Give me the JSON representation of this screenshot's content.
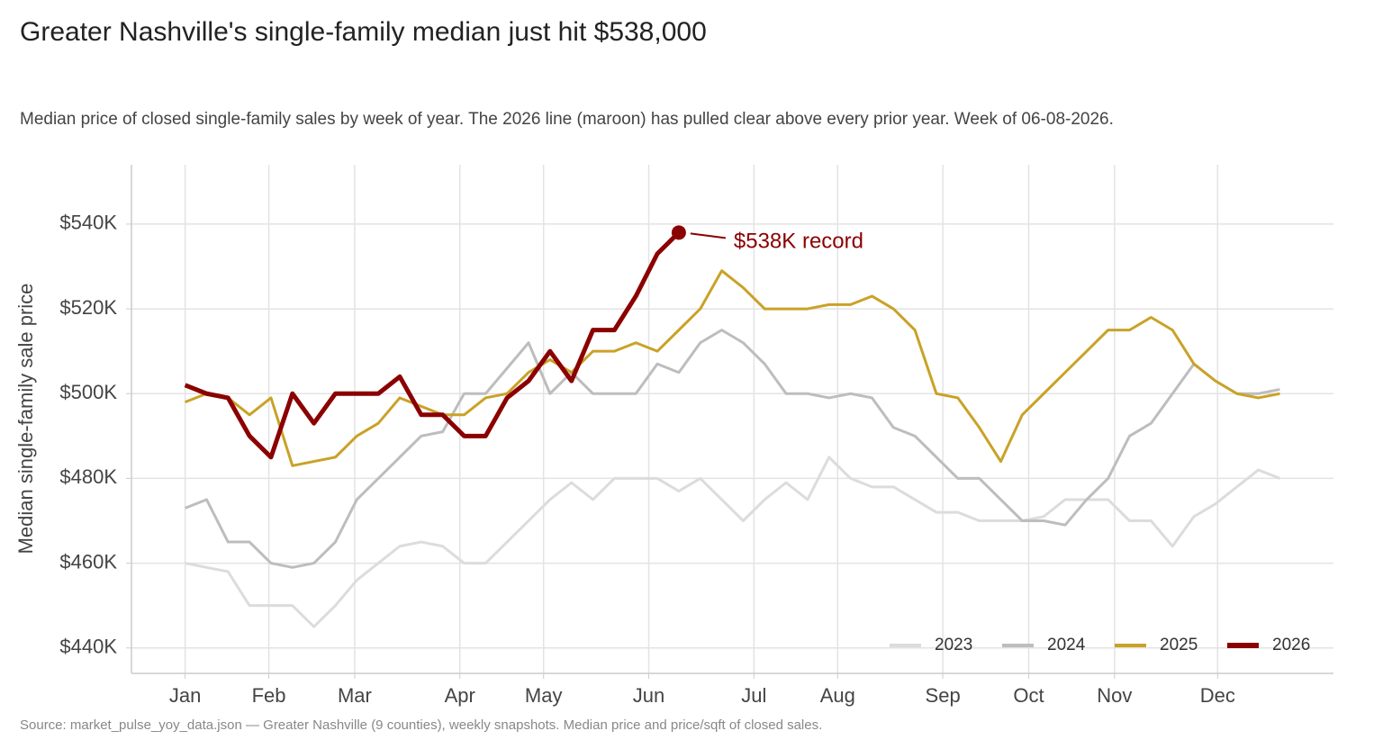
{
  "chart_data": {
    "type": "line",
    "title": "Greater Nashville's single-family median just hit $538,000",
    "subtitle": "Median price of closed single-family sales by week of year. The 2026 line (maroon) has pulled clear above every prior year. Week of 06-08-2026.",
    "y_label": "Median single-family sale price",
    "source": "Source: market_pulse_yoy_data.json — Greater Nashville (9 counties), weekly snapshots. Median price and price/sqft of closed sales.",
    "annotation": "$538K record",
    "grid": true,
    "legend": "bottom-right",
    "x": [
      1,
      2,
      3,
      4,
      5,
      6,
      7,
      8,
      9,
      10,
      11,
      12,
      13,
      14,
      15,
      16,
      17,
      18,
      19,
      20,
      21,
      22,
      23,
      24,
      25,
      26,
      27,
      28,
      29,
      30,
      31,
      32,
      33,
      34,
      35,
      36,
      37,
      38,
      39,
      40,
      41,
      42,
      43,
      44,
      45,
      46,
      47,
      48,
      49,
      50,
      51,
      52
    ],
    "xlim": [
      -1.5,
      54.5
    ],
    "xticks": [
      {
        "value": 1,
        "label": "Jan"
      },
      {
        "value": 4.9,
        "label": "Feb"
      },
      {
        "value": 8.9,
        "label": "Mar"
      },
      {
        "value": 13.8,
        "label": "Apr"
      },
      {
        "value": 17.7,
        "label": "May"
      },
      {
        "value": 22.6,
        "label": "Jun"
      },
      {
        "value": 27.5,
        "label": "Jul"
      },
      {
        "value": 31.4,
        "label": "Aug"
      },
      {
        "value": 36.3,
        "label": "Sep"
      },
      {
        "value": 40.3,
        "label": "Oct"
      },
      {
        "value": 44.3,
        "label": "Nov"
      },
      {
        "value": 49.1,
        "label": "Dec"
      }
    ],
    "ylim": [
      434000,
      554000
    ],
    "yticks": [
      {
        "value": 440000,
        "label": "$440K"
      },
      {
        "value": 460000,
        "label": "$460K"
      },
      {
        "value": 480000,
        "label": "$480K"
      },
      {
        "value": 500000,
        "label": "$500K"
      },
      {
        "value": 520000,
        "label": "$520K"
      },
      {
        "value": 540000,
        "label": "$540K"
      }
    ],
    "series": [
      {
        "name": "2023",
        "color": "#dcdcdc",
        "values": [
          460000,
          459000,
          458000,
          450000,
          450000,
          450000,
          445000,
          450000,
          456000,
          460000,
          464000,
          465000,
          464000,
          460000,
          460000,
          465000,
          470000,
          475000,
          479000,
          475000,
          480000,
          480000,
          480000,
          477000,
          480000,
          475000,
          470000,
          475000,
          479000,
          475000,
          485000,
          480000,
          478000,
          478000,
          475000,
          472000,
          472000,
          470000,
          470000,
          470000,
          471000,
          475000,
          475000,
          475000,
          470000,
          470000,
          464000,
          471000,
          474000,
          478000,
          482000,
          480000
        ]
      },
      {
        "name": "2024",
        "color": "#bdbdbd",
        "values": [
          473000,
          475000,
          465000,
          465000,
          460000,
          459000,
          460000,
          465000,
          475000,
          480000,
          485000,
          490000,
          491000,
          500000,
          500000,
          506000,
          512000,
          500000,
          505000,
          500000,
          500000,
          500000,
          507000,
          505000,
          512000,
          515000,
          512000,
          507000,
          500000,
          500000,
          499000,
          500000,
          499000,
          492000,
          490000,
          485000,
          480000,
          480000,
          475000,
          470000,
          470000,
          469000,
          475000,
          480000,
          490000,
          493000,
          500000,
          507000,
          503000,
          500000,
          500000,
          501000
        ]
      },
      {
        "name": "2025",
        "color": "#c9a227",
        "values": [
          498000,
          500000,
          499000,
          495000,
          499000,
          483000,
          484000,
          485000,
          490000,
          493000,
          499000,
          497000,
          495000,
          495000,
          499000,
          500000,
          505000,
          508000,
          505000,
          510000,
          510000,
          512000,
          510000,
          515000,
          520000,
          529000,
          525000,
          520000,
          520000,
          520000,
          521000,
          521000,
          523000,
          520000,
          515000,
          500000,
          499000,
          492000,
          484000,
          495000,
          500000,
          505000,
          510000,
          515000,
          515000,
          518000,
          515000,
          507000,
          503000,
          500000,
          499000,
          500000
        ]
      },
      {
        "name": "2026",
        "color": "#8b0000",
        "values": [
          502000,
          500000,
          499000,
          490000,
          485000,
          500000,
          493000,
          500000,
          500000,
          500000,
          504000,
          495000,
          495000,
          490000,
          490000,
          499000,
          503000,
          510000,
          503000,
          515000,
          515000,
          523000,
          533000,
          538000,
          null,
          null,
          null,
          null,
          null,
          null,
          null,
          null,
          null,
          null,
          null,
          null,
          null,
          null,
          null,
          null,
          null,
          null,
          null,
          null,
          null,
          null,
          null,
          null,
          null,
          null,
          null,
          null
        ]
      }
    ]
  }
}
